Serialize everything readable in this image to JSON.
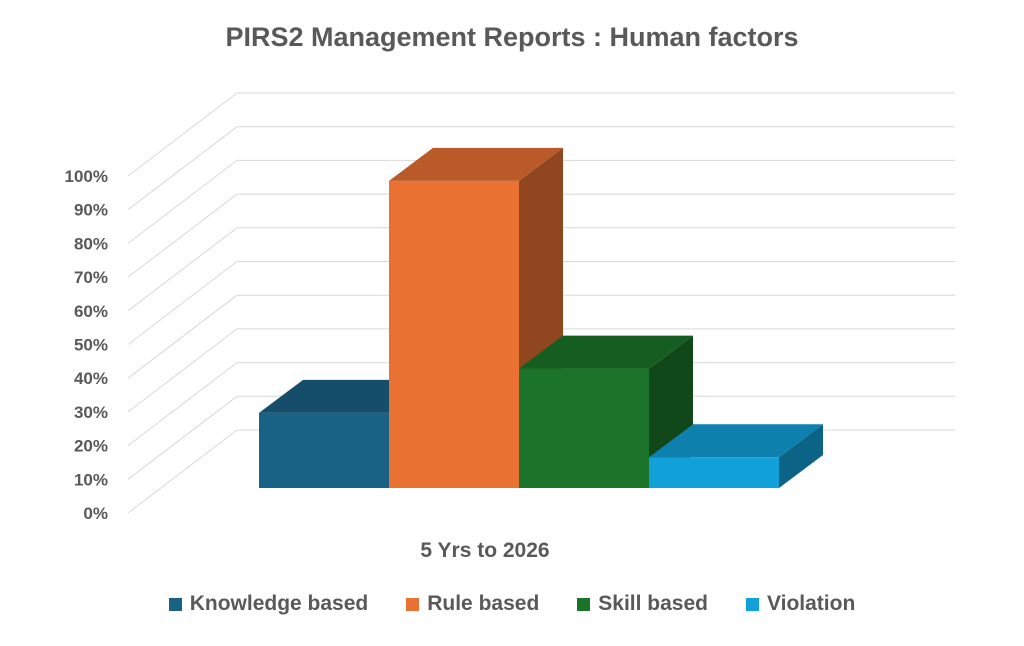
{
  "chart_data": {
    "type": "bar",
    "title": "PIRS2 Management  Reports : Human factors",
    "xlabel": "",
    "ylabel": "",
    "categories": [
      "5 Yrs to 2026"
    ],
    "series": [
      {
        "name": "Knowledge based",
        "values": [
          0.22
        ],
        "color": "#1a6285"
      },
      {
        "name": "Rule based",
        "values": [
          0.9
        ],
        "color": "#e97132"
      },
      {
        "name": "Skill based",
        "values": [
          0.35
        ],
        "color": "#1b7429"
      },
      {
        "name": "Violation",
        "values": [
          0.09
        ],
        "color": "#11a0d8"
      }
    ],
    "ylim": [
      0,
      1
    ],
    "y_ticks": [
      "0%",
      "10%",
      "20%",
      "30%",
      "40%",
      "50%",
      "60%",
      "70%",
      "80%",
      "90%",
      "100%"
    ],
    "grid": true,
    "legend_position": "bottom"
  }
}
